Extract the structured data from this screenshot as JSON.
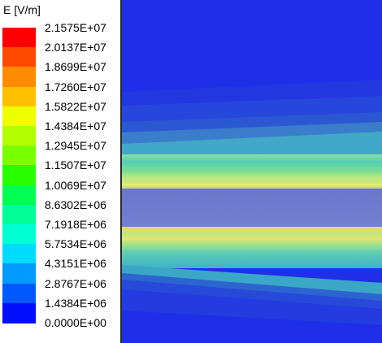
{
  "legend": {
    "title": "E [V/m]",
    "labels": [
      "2.1575E+07",
      "2.0137E+07",
      "1.8699E+07",
      "1.7260E+07",
      "1.5822E+07",
      "1.4384E+07",
      "1.2945E+07",
      "1.1507E+07",
      "1.0069E+07",
      "8.6302E+06",
      "7.1918E+06",
      "5.7534E+06",
      "4.3151E+06",
      "2.8767E+06",
      "1.4384E+06",
      "0.0000E+00"
    ],
    "colors": [
      "#ff0000",
      "#ff4a00",
      "#ff8c00",
      "#ffc000",
      "#f0ff00",
      "#b4ff00",
      "#78ff00",
      "#28ff00",
      "#00ff50",
      "#00ff96",
      "#00ffd2",
      "#00dcff",
      "#009cff",
      "#0058ff",
      "#0010ff"
    ]
  },
  "plot": {
    "colors": {
      "background": "#1e2ee8",
      "band_dark": "#2540dd",
      "band_mid": "#2a58d2",
      "band_light": "#3a7ec8",
      "cyan_mid": "#44b8c6",
      "green_cyan": "#52d2b4",
      "green_bright": "#7ee38a",
      "yellow_line": "#d8e070",
      "center_gray": "#6677cc",
      "center_light": "#7a8ad2"
    }
  }
}
